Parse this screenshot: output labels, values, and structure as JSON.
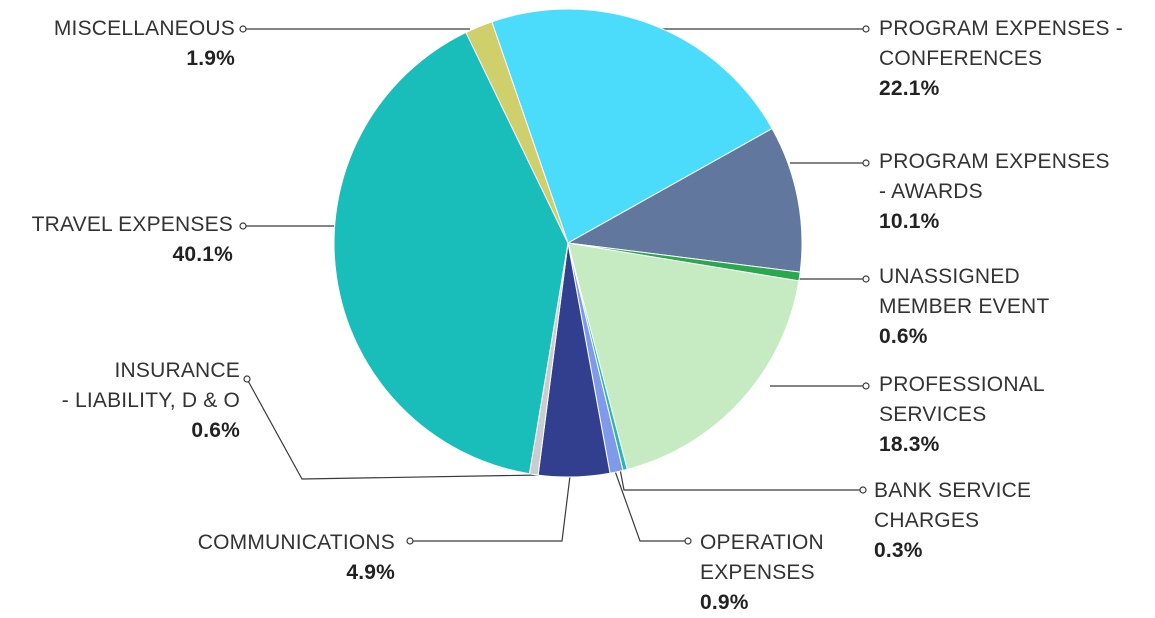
{
  "chart_data": {
    "type": "pie",
    "title": "",
    "slices": [
      {
        "label": "PROGRAM EXPENSES -\nCONFERENCES",
        "value": 22.1,
        "pct_label": "22.1%",
        "color": "#4adcfa"
      },
      {
        "label": "PROGRAM EXPENSES\n- AWARDS",
        "value": 10.1,
        "pct_label": "10.1%",
        "color": "#62779e"
      },
      {
        "label": "UNASSIGNED\nMEMBER EVENT",
        "value": 0.6,
        "pct_label": "0.6%",
        "color": "#2aa84e"
      },
      {
        "label": "PROFESSIONAL\nSERVICES",
        "value": 18.3,
        "pct_label": "18.3%",
        "color": "#c6eac2"
      },
      {
        "label": "BANK SERVICE\nCHARGES",
        "value": 0.3,
        "pct_label": "0.3%",
        "color": "#2bb7b0"
      },
      {
        "label": "OPERATION\nEXPENSES",
        "value": 0.9,
        "pct_label": "0.9%",
        "color": "#7f9ae8"
      },
      {
        "label": "COMMUNICATIONS",
        "value": 4.9,
        "pct_label": "4.9%",
        "color": "#323f8f"
      },
      {
        "label": "INSURANCE\n- LIABILITY, D & O",
        "value": 0.6,
        "pct_label": "0.6%",
        "color": "#c9cdd2"
      },
      {
        "label": "TRAVEL EXPENSES",
        "value": 40.1,
        "pct_label": "40.1%",
        "color": "#19bdb9"
      },
      {
        "label": "MISCELLANEOUS",
        "value": 1.9,
        "pct_label": "1.9%",
        "color": "#cfcf6b"
      }
    ]
  }
}
